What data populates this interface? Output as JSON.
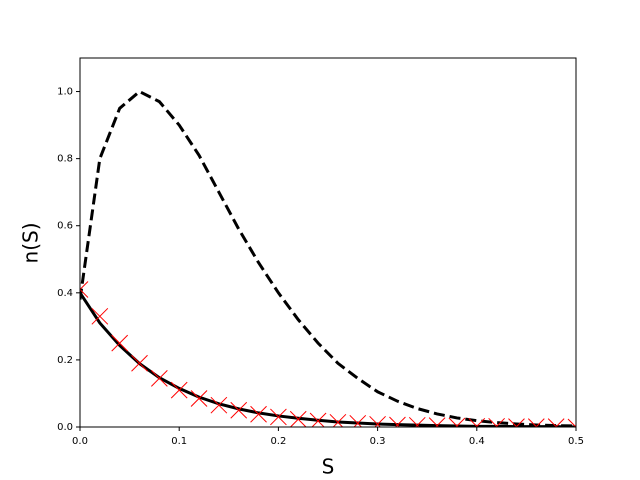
{
  "chart_data": {
    "type": "line",
    "xlabel": "S",
    "ylabel": "n(S)",
    "x": [
      0,
      0.02,
      0.04,
      0.06,
      0.08,
      0.1,
      0.12,
      0.14,
      0.16,
      0.18,
      0.2,
      0.22,
      0.24,
      0.26,
      0.28,
      0.3,
      0.32,
      0.34,
      0.36,
      0.38,
      0.4,
      0.42,
      0.44,
      0.46,
      0.48,
      0.5
    ],
    "series": [
      {
        "color": "#000000",
        "style": "dashed",
        "marker": "none",
        "values": [
          0.38,
          0.8,
          0.95,
          1.0,
          0.97,
          0.9,
          0.81,
          0.7,
          0.59,
          0.49,
          0.4,
          0.32,
          0.25,
          0.19,
          0.145,
          0.105,
          0.077,
          0.055,
          0.039,
          0.027,
          0.019,
          0.013,
          0.009,
          0.006,
          0.004,
          0.003
        ]
      },
      {
        "color": "#000000",
        "style": "solid",
        "marker": "none",
        "values": [
          0.4,
          0.31,
          0.243,
          0.189,
          0.147,
          0.115,
          0.089,
          0.069,
          0.054,
          0.042,
          0.033,
          0.026,
          0.02,
          0.015,
          0.012,
          0.009,
          0.007,
          0.0055,
          0.004,
          0.003,
          0.002,
          0.002,
          0.001,
          0.001,
          0.001,
          0.0
        ]
      },
      {
        "color": "#ff0000",
        "style": "none",
        "marker": "x",
        "values": [
          0.41,
          0.33,
          0.25,
          0.19,
          0.145,
          0.11,
          0.085,
          0.065,
          0.05,
          0.038,
          0.03,
          0.023,
          0.018,
          0.014,
          0.011,
          0.008,
          0.006,
          0.005,
          0.004,
          0.003,
          0.002,
          0.002,
          0.001,
          0.001,
          0.001,
          0.0
        ]
      }
    ],
    "xlim": [
      0,
      0.5
    ],
    "ylim": [
      0,
      1.1
    ],
    "xticks": [
      {
        "value": 0,
        "label": "0.0"
      },
      0.1,
      0.2,
      0.3,
      0.4,
      0.5
    ],
    "yticks": [
      {
        "value": 0,
        "label": "0.0"
      },
      0.2,
      0.4,
      0.6,
      0.8,
      {
        "value": 1,
        "label": "1.0"
      }
    ],
    "grid": false
  }
}
